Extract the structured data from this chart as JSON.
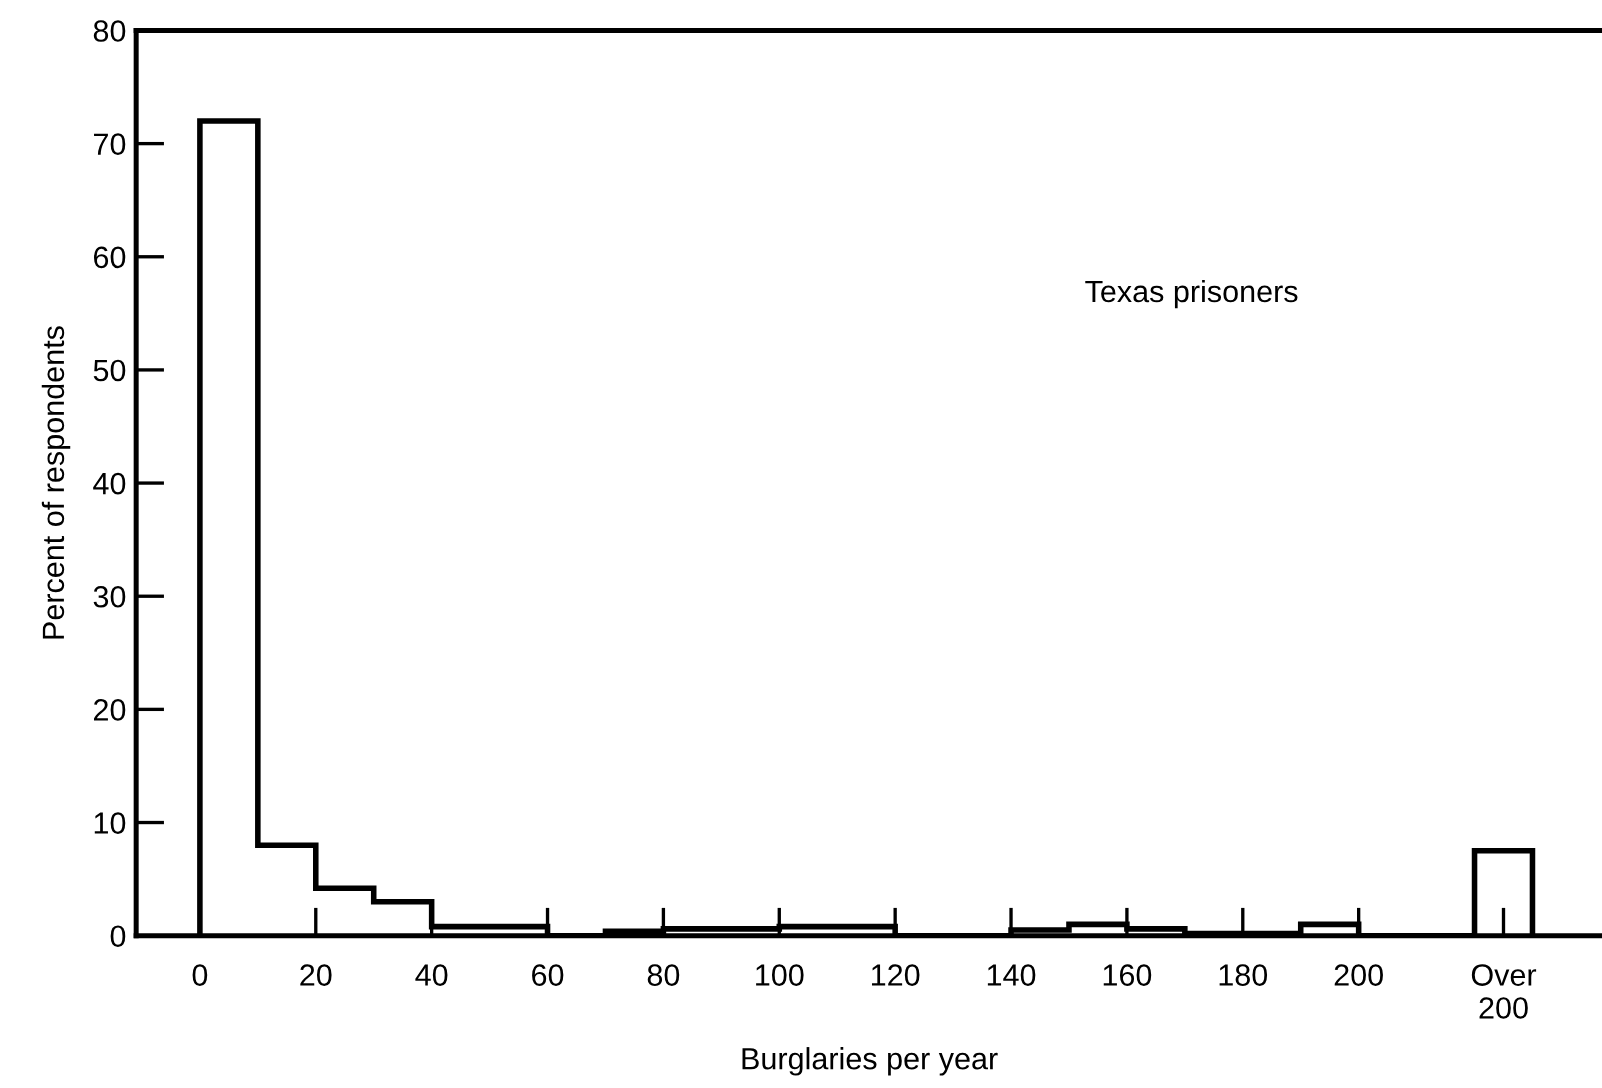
{
  "chart_data": {
    "type": "histogram",
    "xlabel": "Burglaries per year",
    "ylabel": "Percent of respondents",
    "annotations": [
      "Texas prisoners"
    ],
    "bins": [
      0,
      10,
      20,
      30,
      40,
      50,
      60,
      70,
      80,
      90,
      100,
      110,
      120,
      130,
      140,
      150,
      160,
      170,
      180,
      190,
      200,
      220,
      230
    ],
    "values": [
      72,
      8,
      4.2,
      3,
      0.8,
      0.8,
      0,
      0.4,
      0.6,
      0.6,
      0.8,
      0.8,
      0,
      0,
      0.5,
      1,
      0.6,
      0.2,
      0.2,
      1,
      0,
      7.5
    ],
    "color": "#000000",
    "xlim": [
      -11,
      242
    ],
    "ylim": [
      0,
      80
    ],
    "xticks": [
      0,
      20,
      40,
      60,
      80,
      100,
      120,
      140,
      160,
      180,
      200,
      {
        "value": 225,
        "label": "Over\n200"
      }
    ],
    "yticks": [
      0,
      10,
      20,
      30,
      40,
      50,
      60,
      70,
      80
    ],
    "grid": false,
    "legend": false
  }
}
